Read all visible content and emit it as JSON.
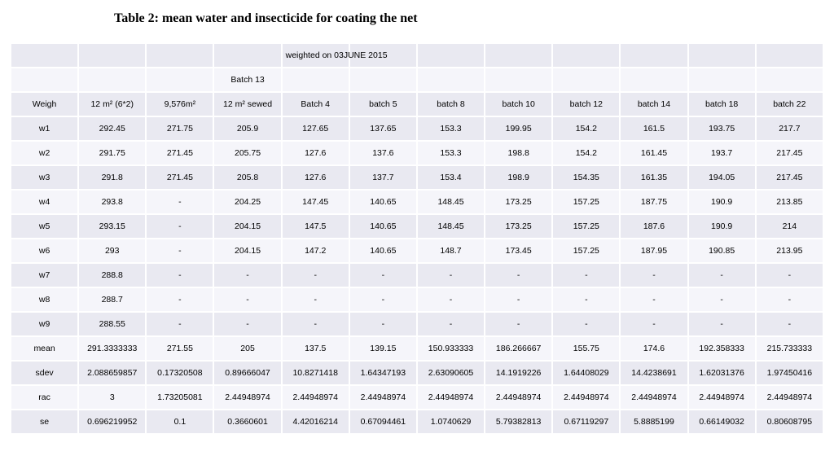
{
  "title": "Table 2: mean water and insecticide for coating the net",
  "super_header": "weighted  on 03JUNE 2015",
  "sub_header": "Batch 13",
  "columns": [
    "Weigh",
    "12 m² (6*2)",
    "9,576m²",
    "12 m² sewed",
    "Batch 4",
    "batch 5",
    "batch 8",
    "batch 10",
    "batch 12",
    "batch 14",
    "batch 18",
    "batch 22"
  ],
  "rows": [
    [
      "w1",
      "292.45",
      "271.75",
      "205.9",
      "127.65",
      "137.65",
      "153.3",
      "199.95",
      "154.2",
      "161.5",
      "193.75",
      "217.7"
    ],
    [
      "w2",
      "291.75",
      "271.45",
      "205.75",
      "127.6",
      "137.6",
      "153.3",
      "198.8",
      "154.2",
      "161.45",
      "193.7",
      "217.45"
    ],
    [
      "w3",
      "291.8",
      "271.45",
      "205.8",
      "127.6",
      "137.7",
      "153.4",
      "198.9",
      "154.35",
      "161.35",
      "194.05",
      "217.45"
    ],
    [
      "w4",
      "293.8",
      "-",
      "204.25",
      "147.45",
      "140.65",
      "148.45",
      "173.25",
      "157.25",
      "187.75",
      "190.9",
      "213.85"
    ],
    [
      "w5",
      "293.15",
      "-",
      "204.15",
      "147.5",
      "140.65",
      "148.45",
      "173.25",
      "157.25",
      "187.6",
      "190.9",
      "214"
    ],
    [
      "w6",
      "293",
      "-",
      "204.15",
      "147.2",
      "140.65",
      "148.7",
      "173.45",
      "157.25",
      "187.95",
      "190.85",
      "213.95"
    ],
    [
      "w7",
      "288.8",
      "-",
      "-",
      "-",
      "-",
      "-",
      "-",
      "-",
      "-",
      "-",
      "-"
    ],
    [
      "w8",
      "288.7",
      "-",
      "-",
      "-",
      "-",
      "-",
      "-",
      "-",
      "-",
      "-",
      "-"
    ],
    [
      "w9",
      "288.55",
      "-",
      "-",
      "-",
      "-",
      "-",
      "-",
      "-",
      "-",
      "-",
      "-"
    ],
    [
      "mean",
      "291.3333333",
      "271.55",
      "205",
      "137.5",
      "139.15",
      "150.933333",
      "186.266667",
      "155.75",
      "174.6",
      "192.358333",
      "215.733333"
    ],
    [
      "sdev",
      "2.088659857",
      "0.17320508",
      "0.89666047",
      "10.8271418",
      "1.64347193",
      "2.63090605",
      "14.1919226",
      "1.64408029",
      "14.4238691",
      "1.62031376",
      "1.97450416"
    ],
    [
      "rac",
      "3",
      "1.73205081",
      "2.44948974",
      "2.44948974",
      "2.44948974",
      "2.44948974",
      "2.44948974",
      "2.44948974",
      "2.44948974",
      "2.44948974",
      "2.44948974"
    ],
    [
      "se",
      "0.696219952",
      "0.1",
      "0.3660601",
      "4.42016214",
      "0.67094461",
      "1.0740629",
      "5.79382813",
      "0.67119297",
      "5.8885199",
      "0.66149032",
      "0.80608795"
    ]
  ],
  "band_classes": [
    "dark",
    "light",
    "dark",
    "light",
    "dark",
    "light",
    "dark",
    "light",
    "dark",
    "light",
    "dark",
    "light",
    "dark"
  ]
}
